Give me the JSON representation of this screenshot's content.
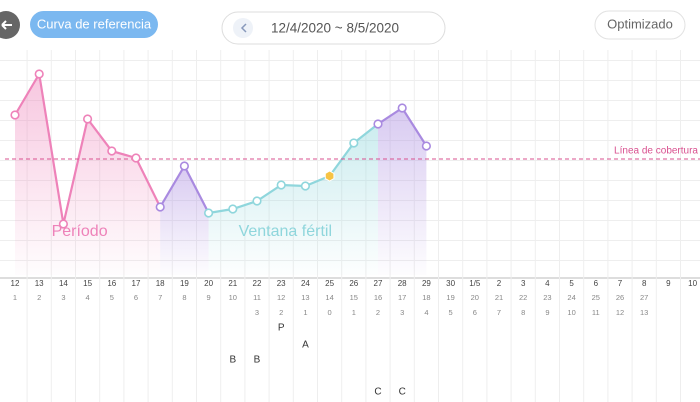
{
  "header": {
    "reference_button": "Curva de referencia",
    "date_range": "12/4/2020 ~ 8/5/2020",
    "mode_button": "Optimizado"
  },
  "chart_data": {
    "type": "line",
    "categories": [
      "12",
      "13",
      "14",
      "15",
      "16",
      "17",
      "18",
      "19",
      "20",
      "21",
      "22",
      "23",
      "24",
      "25",
      "26",
      "27",
      "28",
      "29",
      "30",
      "1/5",
      "2",
      "3",
      "4",
      "5",
      "6",
      "7",
      "8",
      "9",
      "10"
    ],
    "cycle_days": [
      1,
      2,
      3,
      4,
      5,
      6,
      7,
      8,
      9,
      10,
      11,
      12,
      13,
      14,
      15,
      16,
      17,
      18,
      19,
      20,
      21,
      22,
      23,
      24,
      25,
      26,
      27,
      null,
      null
    ],
    "ovulation_days": [
      null,
      null,
      null,
      null,
      null,
      null,
      null,
      null,
      null,
      null,
      3,
      2,
      1,
      0,
      1,
      2,
      3,
      4,
      5,
      6,
      7,
      8,
      9,
      10,
      11,
      12,
      13,
      null,
      null
    ],
    "values": [
      160,
      201,
      51,
      156,
      124,
      117,
      68,
      109,
      62,
      66,
      74,
      90,
      89,
      99,
      132,
      151,
      167,
      129,
      null,
      null,
      null,
      null,
      null,
      null,
      null,
      null,
      null,
      null,
      null
    ],
    "ylim": [
      0,
      225
    ],
    "ovulation": "25",
    "cover_line": {
      "value": 116,
      "label": "Línea de cobertura",
      "color": "#d9508f"
    },
    "phases": [
      {
        "label": "Período",
        "from": "12",
        "to": "18",
        "color": "#ee82b9"
      },
      {
        "from": "18",
        "to": "20",
        "color": "#a98ae0"
      },
      {
        "label": "Ventana fértil",
        "from": "20",
        "to": "27",
        "color": "#8fd6dc"
      },
      {
        "from": "27",
        "to": "29",
        "color": "#a98ae0"
      }
    ],
    "markers": [
      {
        "label": "P",
        "dates": [
          "23"
        ]
      },
      {
        "label": "A",
        "dates": [
          "24"
        ]
      },
      {
        "label": "B",
        "dates": [
          "21",
          "22"
        ]
      },
      {
        "label": "C",
        "dates": [
          "27",
          "28"
        ]
      }
    ]
  }
}
